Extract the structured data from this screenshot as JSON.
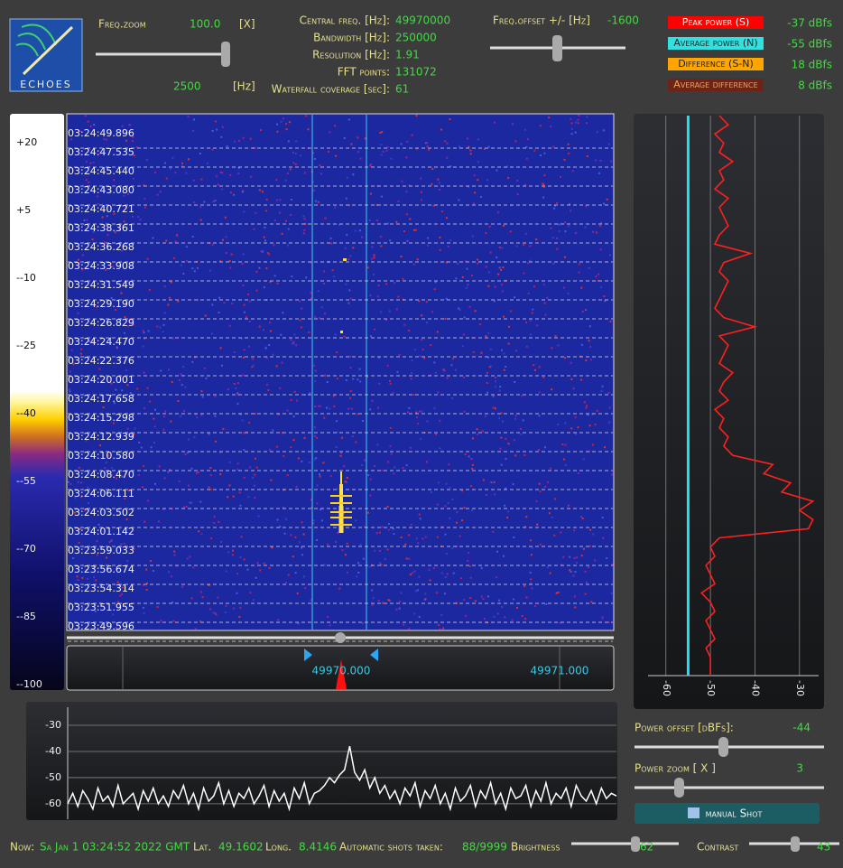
{
  "logo": "ECHOES",
  "header": {
    "freq_zoom_label": "Freq.zoom",
    "freq_zoom_value": "100.0",
    "freq_zoom_unit": "[X]",
    "span_value": "2500",
    "span_unit": "[Hz]",
    "info": [
      {
        "label": "Central freq. [Hz]:",
        "value": "49970000"
      },
      {
        "label": "Bandwidth  [Hz]:",
        "value": "250000"
      },
      {
        "label": "Resolution [Hz]:",
        "value": "1.91"
      },
      {
        "label": "FFT points:",
        "value": "131072"
      },
      {
        "label": "Waterfall coverage [sec]:",
        "value": "61"
      }
    ],
    "freq_offset_label": "Freq.offset +/- [Hz]",
    "freq_offset_value": "-1600"
  },
  "legend": [
    {
      "label": "Peak power (S)",
      "value": "-37 dBfs",
      "color": "#ff0000"
    },
    {
      "label": "Average power (N)",
      "value": "-55 dBfs",
      "color": "#33e0e0"
    },
    {
      "label": "Difference (S-N)",
      "value": "18 dBfs",
      "color": "#ffa500"
    },
    {
      "label": "Average difference",
      "value": "8 dBfs",
      "color": "#6b2416"
    }
  ],
  "color_scale": [
    "+20",
    "+5",
    "--10",
    "--25",
    "--40",
    "--55",
    "--70",
    "--85",
    "--100"
  ],
  "waterfall": {
    "timestamps": [
      "03:24:49.896",
      "03:24:47.535",
      "03:24:45.440",
      "03:24:43.080",
      "03:24:40.721",
      "03:24:38.361",
      "03:24:36.268",
      "03:24:33.908",
      "03:24:31.549",
      "03:24:29.190",
      "03:24:26.829",
      "03:24:24.470",
      "03:24:22.376",
      "03:24:20.001",
      "03:24:17.658",
      "03:24:15.298",
      "03:24:12.939",
      "03:24:10.580",
      "03:24:08.470",
      "03:24:06.111",
      "03:24:03.502",
      "03:24:01.142",
      "03:23:59.033",
      "03:23:56.674",
      "03:23:54.314",
      "03:23:51.955",
      "03:23:49.596"
    ]
  },
  "freq_axis": [
    "49970.000",
    "49971.000"
  ],
  "power_plot": {
    "xlim": [
      -63.6,
      -25.7
    ],
    "xticks": [
      -60,
      -50,
      -40,
      -30
    ],
    "average": -55,
    "color": "#ff2020",
    "average_color": "#22e0f0",
    "values": [
      -48,
      -46,
      -49,
      -47,
      -48,
      -45,
      -48,
      -47,
      -49,
      -46,
      -48,
      -47,
      -46,
      -48,
      -49,
      -41,
      -47,
      -48,
      -46,
      -47,
      -48,
      -49,
      -47,
      -40,
      -48,
      -46,
      -47,
      -48,
      -45,
      -47,
      -48,
      -46,
      -49,
      -47,
      -48,
      -46,
      -47,
      -45,
      -36,
      -38,
      -32,
      -34,
      -27,
      -30,
      -27,
      -28,
      -48,
      -50,
      -49,
      -51,
      -50,
      -49,
      -52,
      -50,
      -49,
      -51,
      -50,
      -49,
      -51,
      -50,
      -50,
      -50
    ]
  },
  "spectrum": {
    "ylim": [
      -65.9,
      -23.1
    ],
    "yticks": [
      -30,
      -40,
      -50,
      -60
    ],
    "color": "#ffffff",
    "values": [
      -60,
      -56,
      -61,
      -55,
      -58,
      -62,
      -54,
      -59,
      -57,
      -61,
      -53,
      -60,
      -58,
      -56,
      -62,
      -55,
      -59,
      -54,
      -60,
      -57,
      -61,
      -55,
      -58,
      -53,
      -60,
      -56,
      -62,
      -54,
      -59,
      -57,
      -52,
      -60,
      -55,
      -61,
      -56,
      -58,
      -54,
      -60,
      -57,
      -53,
      -61,
      -55,
      -59,
      -56,
      -62,
      -54,
      -58,
      -52,
      -60,
      -56,
      -55,
      -53,
      -50,
      -52,
      -49,
      -47,
      -38,
      -48,
      -51,
      -47,
      -54,
      -50,
      -56,
      -53,
      -58,
      -55,
      -60,
      -54,
      -57,
      -52,
      -61,
      -55,
      -58,
      -53,
      -60,
      -56,
      -62,
      -54,
      -59,
      -57,
      -53,
      -61,
      -55,
      -58,
      -52,
      -60,
      -56,
      -62,
      -54,
      -58,
      -57,
      -53,
      -61,
      -55,
      -59,
      -52,
      -60,
      -56,
      -58,
      -54,
      -61,
      -53,
      -57,
      -59,
      -55,
      -60,
      -54,
      -58,
      -56,
      -57
    ]
  },
  "controls": {
    "power_offset_label": "Power offset [dBFs]:",
    "power_offset_value": "-44",
    "power_zoom_label": "Power zoom  [ X ]",
    "power_zoom_value": "3",
    "button": "manual Shot"
  },
  "status": {
    "now_label": "Now:",
    "now": "Sa Jan 1 03:24:52 2022 GMT",
    "lat_label": "Lat.",
    "lat": "49.1602",
    "long_label": "Long.",
    "long": "8.4146",
    "shots_label": "Automatic shots taken:",
    "shots": "88/9999",
    "brightness_label": "Brightness",
    "brightness": "62",
    "contrast_label": "Contrast",
    "contrast": "43"
  }
}
